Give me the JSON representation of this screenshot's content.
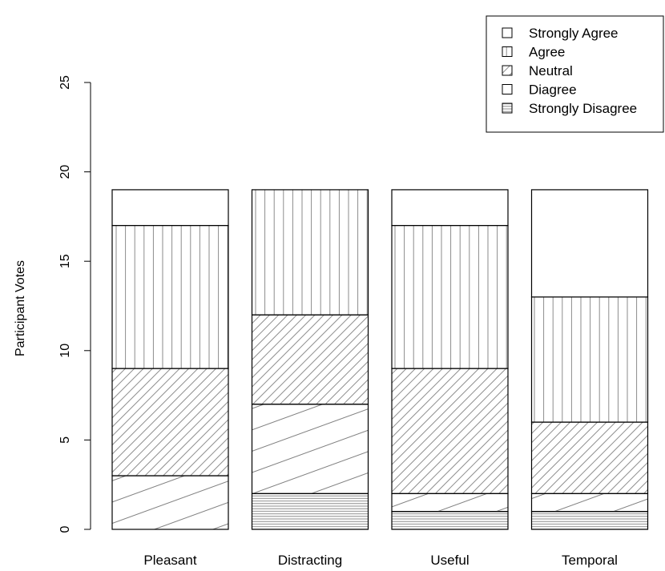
{
  "chart_data": {
    "type": "bar",
    "stacked": true,
    "categories": [
      "Pleasant",
      "Distracting",
      "Useful",
      "Temporal"
    ],
    "ylabel": "Participant Votes",
    "xlabel": "",
    "ylim": [
      0,
      25
    ],
    "yticks": [
      0,
      5,
      10,
      15,
      20,
      25
    ],
    "grid": false,
    "legend_position": "top-right",
    "series": [
      {
        "name": "Strongly Disagree",
        "pattern": "horizontal-lines",
        "values": [
          0,
          2,
          1,
          1
        ]
      },
      {
        "name": "Diagree",
        "pattern": "diagonal-shallow",
        "values": [
          3,
          5,
          1,
          1
        ]
      },
      {
        "name": "Neutral",
        "pattern": "diagonal-dense",
        "values": [
          6,
          5,
          7,
          4
        ]
      },
      {
        "name": "Agree",
        "pattern": "vertical-lines",
        "values": [
          8,
          7,
          8,
          7
        ]
      },
      {
        "name": "Strongly Agree",
        "pattern": "none",
        "values": [
          2,
          0,
          2,
          6
        ]
      }
    ],
    "legend_order": [
      "Strongly Agree",
      "Agree",
      "Neutral",
      "Diagree",
      "Strongly Disagree"
    ],
    "colors": {
      "line": "#000000",
      "hatch": "#808080",
      "fill": "#ffffff"
    }
  }
}
